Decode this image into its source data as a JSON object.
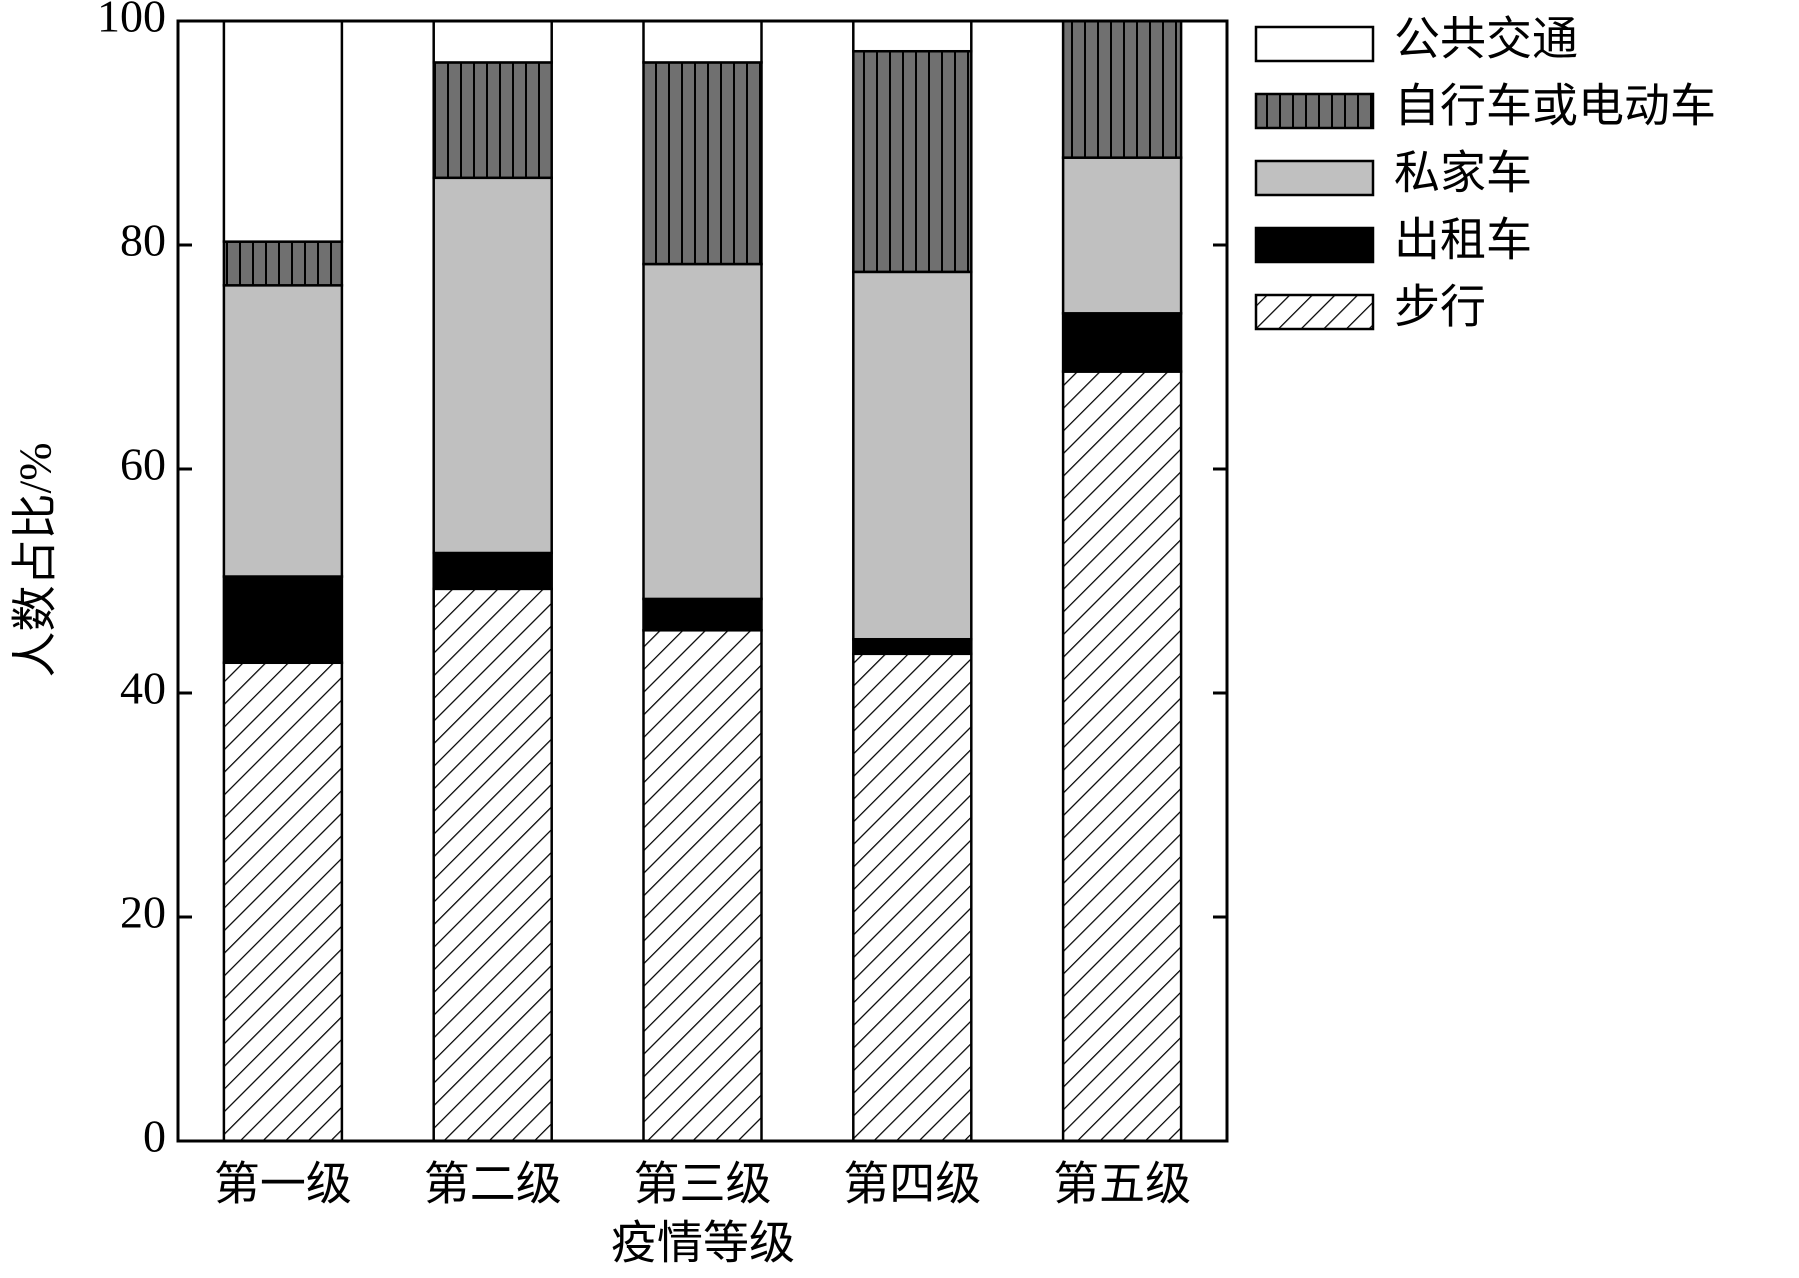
{
  "chart_data": {
    "type": "stacked_bar",
    "xlabel": "疫情等级",
    "ylabel": "人数占比/%",
    "categories": [
      "第一级",
      "第二级",
      "第三级",
      "第四级",
      "第五级"
    ],
    "series": [
      {
        "name": "步行",
        "color": "#ffffff",
        "pattern": "hatch",
        "values": [
          42.7,
          49.3,
          45.6,
          43.5,
          68.7
        ]
      },
      {
        "name": "出租车",
        "color": "#000000",
        "values": [
          7.7,
          3.2,
          2.8,
          1.3,
          5.2
        ]
      },
      {
        "name": "私家车",
        "color": "#c0c0c0",
        "values": [
          26.0,
          33.5,
          29.9,
          32.8,
          13.9
        ]
      },
      {
        "name": "自行车或电动车",
        "color": "#707070",
        "pattern": "vstripe",
        "values": [
          3.9,
          10.3,
          18.0,
          19.7,
          12.2
        ]
      },
      {
        "name": "公共交通",
        "color": "#ffffff",
        "values": [
          19.7,
          3.7,
          3.7,
          2.7,
          0
        ]
      }
    ],
    "ylim": [
      0,
      100
    ],
    "yticks": [
      0,
      20,
      40,
      60,
      80,
      100
    ]
  }
}
